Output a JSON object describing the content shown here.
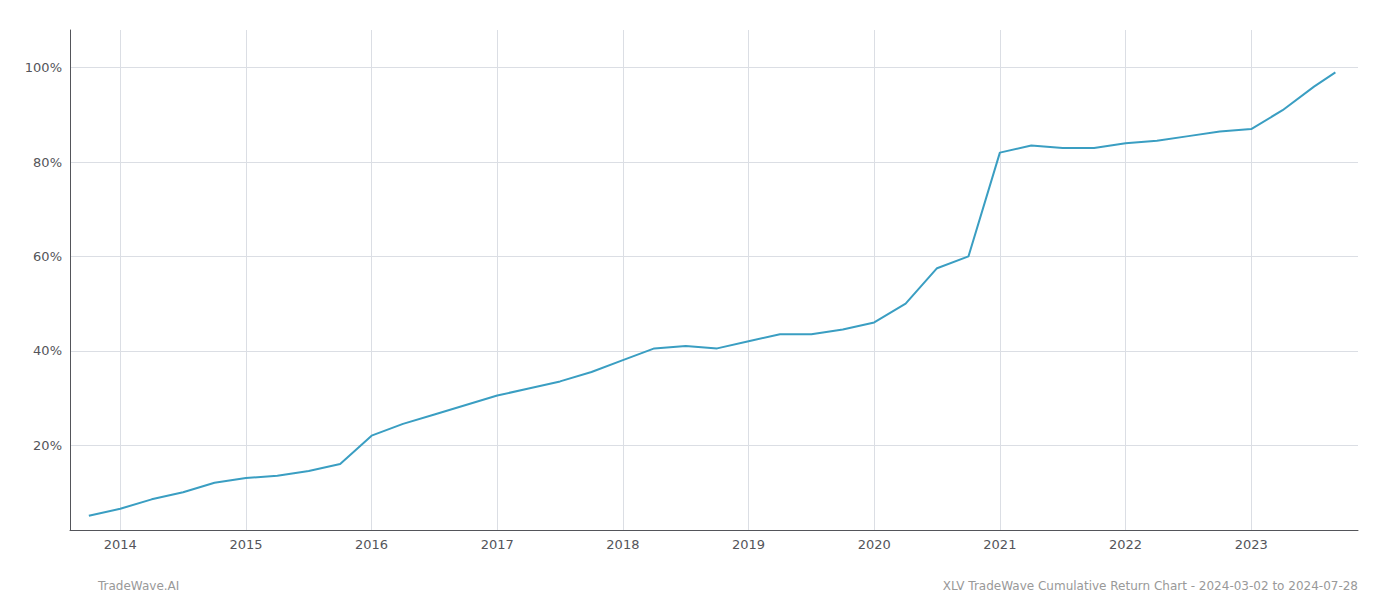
{
  "chart_data": {
    "type": "line",
    "x": [
      2013.75,
      2014.0,
      2014.25,
      2014.5,
      2014.75,
      2015.0,
      2015.25,
      2015.5,
      2015.75,
      2016.0,
      2016.25,
      2016.5,
      2016.75,
      2017.0,
      2017.25,
      2017.5,
      2017.75,
      2018.0,
      2018.25,
      2018.5,
      2018.75,
      2019.0,
      2019.25,
      2019.5,
      2019.75,
      2020.0,
      2020.25,
      2020.5,
      2020.75,
      2021.0,
      2021.25,
      2021.5,
      2021.75,
      2022.0,
      2022.25,
      2022.5,
      2022.75,
      2023.0,
      2023.25,
      2023.5,
      2023.67
    ],
    "values": [
      5.0,
      6.5,
      8.5,
      10.0,
      12.0,
      13.0,
      13.5,
      14.5,
      16.0,
      22.0,
      24.5,
      26.5,
      28.5,
      30.5,
      32.0,
      33.5,
      35.5,
      38.0,
      40.5,
      41.0,
      40.5,
      42.0,
      43.5,
      43.5,
      44.5,
      46.0,
      50.0,
      57.5,
      60.0,
      82.0,
      83.5,
      83.0,
      83.0,
      84.0,
      84.5,
      85.5,
      86.5,
      87.0,
      91.0,
      96.0,
      99.0
    ],
    "color": "#3a9ec2",
    "xlim": [
      2013.6,
      2023.85
    ],
    "xticks": [
      2014,
      2015,
      2016,
      2017,
      2018,
      2019,
      2020,
      2021,
      2022,
      2023
    ],
    "ylim": [
      2,
      108
    ],
    "yticks": [
      {
        "value": 20,
        "label": "20%"
      },
      {
        "value": 40,
        "label": "40%"
      },
      {
        "value": 60,
        "label": "60%"
      },
      {
        "value": 80,
        "label": "80%"
      },
      {
        "value": 100,
        "label": "100%"
      }
    ],
    "grid": true,
    "annotations": [
      "TradeWave.AI",
      "XLV TradeWave Cumulative Return Chart - 2024-03-02 to 2024-07-28"
    ]
  }
}
